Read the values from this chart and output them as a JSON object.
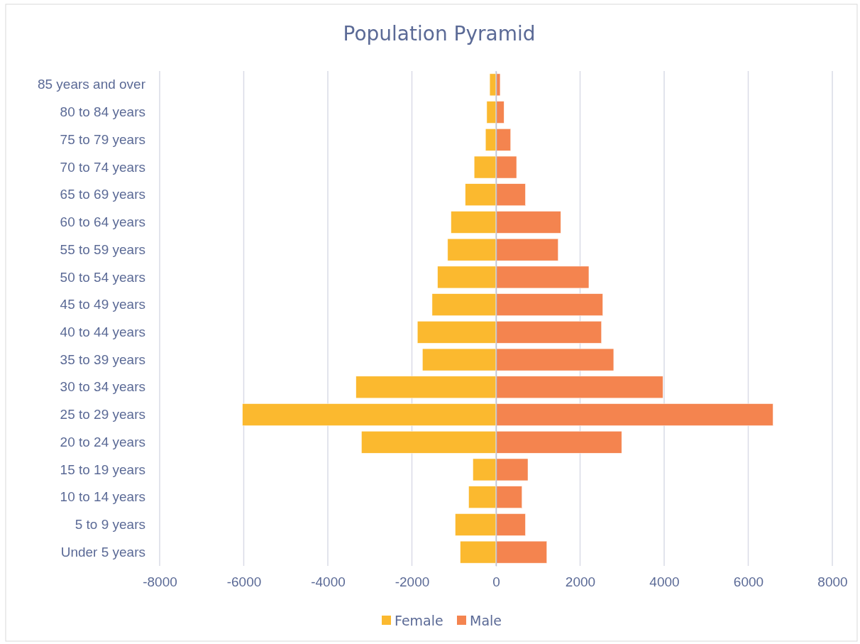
{
  "chart_data": {
    "type": "bar",
    "orientation": "horizontal",
    "stacked": true,
    "title": "Population Pyramid",
    "categories": [
      "85 years and over",
      "80 to 84 years",
      "75 to 79 years",
      "70 to 74 years",
      "65 to 69 years",
      "60 to 64 years",
      "55 to 59 years",
      "50 to 54 years",
      "45 to 49 years",
      "40 to 44 years",
      "35 to 39 years",
      "30 to 34 years",
      "25 to 29 years",
      "20 to 24 years",
      "15 to 19 years",
      "10 to 14 years",
      "5 to 9 years",
      "Under 5 years"
    ],
    "series": [
      {
        "name": "Female",
        "color": "#fbb92f",
        "values": [
          -150,
          -220,
          -250,
          -520,
          -730,
          -1070,
          -1150,
          -1390,
          -1520,
          -1870,
          -1750,
          -3330,
          -6030,
          -3200,
          -550,
          -650,
          -970,
          -850
        ]
      },
      {
        "name": "Male",
        "color": "#f4844f",
        "values": [
          100,
          190,
          350,
          490,
          700,
          1540,
          1480,
          2210,
          2540,
          2510,
          2800,
          3970,
          6590,
          2990,
          760,
          620,
          700,
          1210
        ]
      }
    ],
    "xlim": [
      -8000,
      8000
    ],
    "xticks": [
      -8000,
      -6000,
      -4000,
      -2000,
      0,
      2000,
      4000,
      6000,
      8000
    ],
    "grid": "x",
    "legend": "bottom"
  }
}
